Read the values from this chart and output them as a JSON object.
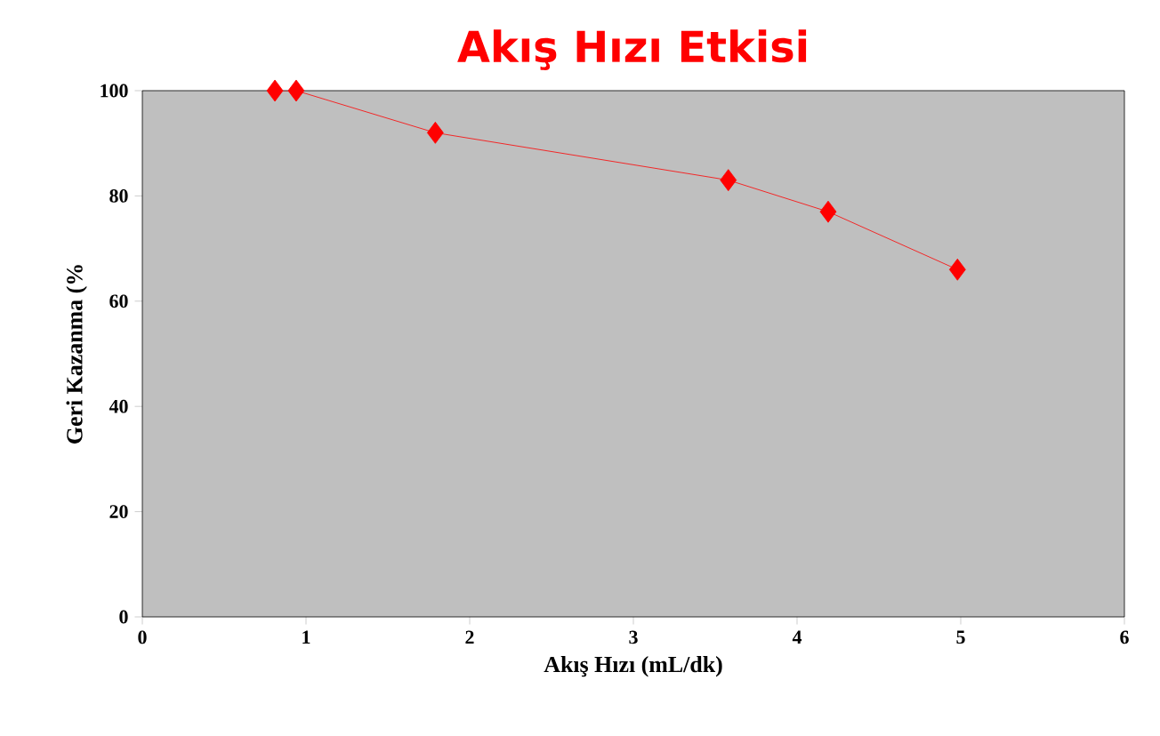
{
  "chart_data": {
    "type": "line",
    "title": "Akış Hızı Etkisi",
    "xlabel": "Akış Hızı (mL/dk)",
    "ylabel": "Geri Kazanma (%",
    "x": [
      0.81,
      0.94,
      1.79,
      3.58,
      4.19,
      4.98
    ],
    "values": [
      100,
      100,
      92,
      83,
      77,
      66
    ],
    "color": "#ff0000",
    "marker": "diamond",
    "xlim": [
      0,
      6
    ],
    "ylim": [
      0,
      100
    ],
    "xticks": [
      0,
      1,
      2,
      3,
      4,
      5,
      6
    ],
    "yticks": [
      0,
      20,
      40,
      60,
      80,
      100
    ]
  }
}
